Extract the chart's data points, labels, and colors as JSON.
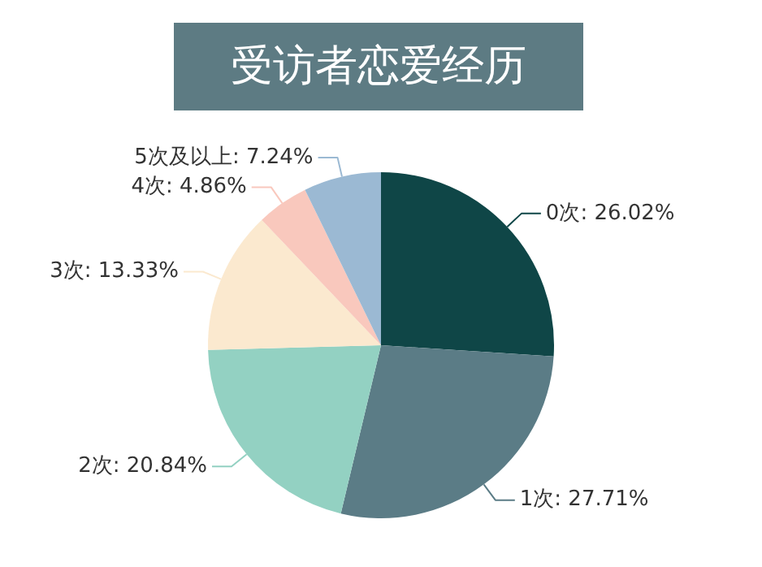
{
  "chart_data": {
    "type": "pie",
    "title": "受访者恋爱经历",
    "categories": [
      "0次",
      "1次",
      "2次",
      "3次",
      "4次",
      "5次及以上"
    ],
    "values": [
      26.02,
      27.71,
      20.84,
      13.33,
      4.86,
      7.24
    ],
    "value_labels": [
      "26.02%",
      "27.71%",
      "20.84%",
      "13.33%",
      "4.86%",
      "7.24%"
    ],
    "colors": [
      "#0f4647",
      "#5b7c86",
      "#93d1c2",
      "#fbe9cf",
      "#f9c8bd",
      "#9bb9d3"
    ],
    "legend": false
  }
}
